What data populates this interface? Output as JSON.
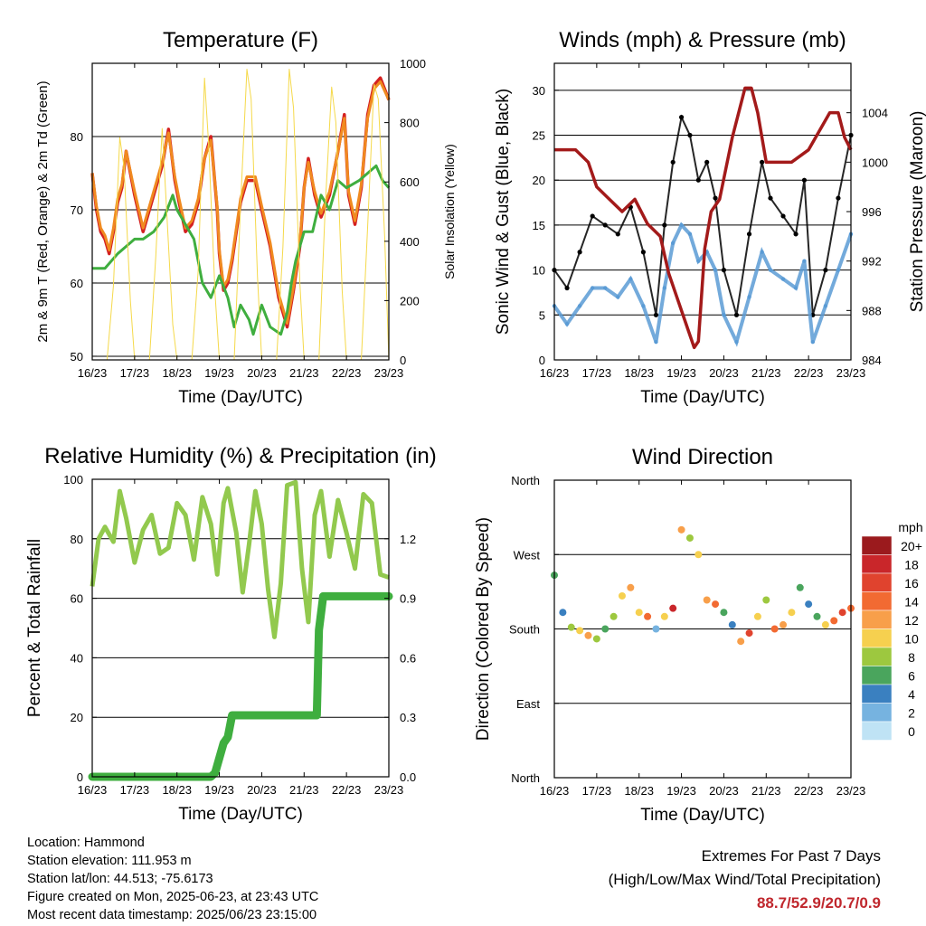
{
  "x_ticks": [
    "16/23",
    "17/23",
    "18/23",
    "19/23",
    "20/23",
    "21/23",
    "22/23",
    "23/23"
  ],
  "xlabel": "Time (Day/UTC)",
  "colors": {
    "temp2m": "#d42020",
    "temp9m": "#f08a20",
    "dewpoint": "#3fae3f",
    "solar": "#f5d94a",
    "sonic_wind": "#5a9bd5",
    "gust": "#000000",
    "pressure": "#a31a1a",
    "rh": "#92c94e",
    "precip": "#3fae3f",
    "extremes": "#c0272d"
  },
  "chart_data": [
    {
      "type": "line",
      "id": "temperature",
      "title": "Temperature (F)",
      "xlabel": "Time (Day/UTC)",
      "ylabel": "2m & 9m T (Red, Orange) & 2m Td (Green)",
      "y2label": "Solar Insolation (Yellow)",
      "x_range": [
        0,
        7
      ],
      "ylim": [
        49.5,
        90
      ],
      "y_ticks": [
        50,
        60,
        70,
        80
      ],
      "y2lim": [
        0,
        1000
      ],
      "y2_ticks": [
        0,
        200,
        400,
        600,
        800,
        1000
      ],
      "grid": true,
      "series": [
        {
          "name": "2m T",
          "axis": "left",
          "color": "#d42020",
          "x": [
            0,
            0.1,
            0.2,
            0.3,
            0.4,
            0.5,
            0.6,
            0.7,
            0.8,
            1.0,
            1.2,
            1.35,
            1.5,
            1.65,
            1.8,
            1.95,
            2.05,
            2.2,
            2.35,
            2.5,
            2.65,
            2.8,
            2.95,
            3.0,
            3.1,
            3.2,
            3.3,
            3.5,
            3.65,
            3.85,
            4.0,
            4.2,
            4.4,
            4.6,
            4.75,
            4.9,
            5.0,
            5.1,
            5.25,
            5.4,
            5.6,
            5.8,
            5.95,
            6.05,
            6.2,
            6.35,
            6.5,
            6.65,
            6.8,
            7.0
          ],
          "y": [
            75,
            70,
            67,
            66,
            64,
            67,
            71,
            73,
            78,
            72,
            67,
            70,
            73,
            76,
            81,
            74,
            71,
            67,
            68,
            71,
            77,
            80,
            70,
            64,
            59,
            60,
            63,
            71,
            74,
            74,
            70,
            65,
            58,
            54,
            59,
            65,
            73,
            77,
            72,
            69,
            72,
            78,
            83,
            72,
            68,
            73,
            83,
            87,
            88,
            85
          ]
        },
        {
          "name": "9m T",
          "axis": "left",
          "color": "#f08a20",
          "x": [
            0,
            0.1,
            0.2,
            0.3,
            0.4,
            0.5,
            0.6,
            0.7,
            0.8,
            1.0,
            1.2,
            1.35,
            1.5,
            1.65,
            1.8,
            1.95,
            2.05,
            2.2,
            2.35,
            2.5,
            2.65,
            2.8,
            2.95,
            3.0,
            3.1,
            3.2,
            3.3,
            3.5,
            3.65,
            3.85,
            4.0,
            4.2,
            4.4,
            4.6,
            4.75,
            4.9,
            5.0,
            5.1,
            5.25,
            5.4,
            5.6,
            5.8,
            5.95,
            6.05,
            6.2,
            6.35,
            6.5,
            6.65,
            6.8,
            7.0
          ],
          "y": [
            75,
            70.5,
            67.5,
            66.5,
            64.5,
            67.5,
            71.5,
            73.5,
            78,
            72.5,
            67.5,
            70.5,
            73.5,
            76.5,
            80.5,
            74.5,
            71.5,
            67.5,
            68.5,
            71.5,
            77,
            79.5,
            70.5,
            64.5,
            59.5,
            60.5,
            63.5,
            71.5,
            74.5,
            74.5,
            70.5,
            65.5,
            58.5,
            54.5,
            59.5,
            65.5,
            73,
            76.5,
            72.5,
            69.5,
            72.5,
            78,
            82.5,
            72.5,
            68.5,
            73.5,
            82.5,
            86.5,
            87.5,
            85
          ]
        },
        {
          "name": "2m Td",
          "axis": "left",
          "color": "#3fae3f",
          "x": [
            0,
            0.3,
            0.6,
            0.8,
            1.0,
            1.2,
            1.45,
            1.7,
            1.9,
            2.0,
            2.2,
            2.4,
            2.6,
            2.8,
            3.0,
            3.2,
            3.35,
            3.5,
            3.7,
            3.8,
            4.0,
            4.2,
            4.45,
            4.6,
            4.7,
            4.8,
            5.0,
            5.2,
            5.4,
            5.6,
            5.8,
            6.0,
            6.3,
            6.5,
            6.7,
            6.85,
            7.0
          ],
          "y": [
            62,
            62,
            64,
            65,
            66,
            66,
            67,
            69,
            72,
            70,
            68,
            66,
            60,
            58,
            61,
            58,
            54,
            57,
            55,
            53,
            57,
            54,
            53,
            56,
            60,
            63,
            67,
            67,
            72,
            70,
            74,
            73,
            74,
            75,
            76,
            74,
            73
          ]
        },
        {
          "name": "Solar Insolation",
          "axis": "right",
          "color": "#f5d94a",
          "x": [
            0,
            0.35,
            0.5,
            0.65,
            0.75,
            0.9,
            1.0,
            1.35,
            1.5,
            1.65,
            1.75,
            1.9,
            2.0,
            2.35,
            2.5,
            2.65,
            2.75,
            2.9,
            3.0,
            3.35,
            3.5,
            3.65,
            3.75,
            3.9,
            4.0,
            4.35,
            4.5,
            4.65,
            4.75,
            4.9,
            5.0,
            5.35,
            5.5,
            5.65,
            5.75,
            5.9,
            6.0,
            6.35,
            6.5,
            6.65,
            6.75,
            6.9,
            7.0
          ],
          "y": [
            0,
            0,
            250,
            750,
            650,
            200,
            0,
            0,
            350,
            780,
            520,
            120,
            0,
            0,
            300,
            950,
            720,
            220,
            0,
            0,
            520,
            980,
            880,
            280,
            0,
            0,
            380,
            980,
            850,
            260,
            0,
            0,
            520,
            920,
            800,
            230,
            0,
            0,
            450,
            930,
            880,
            420,
            0
          ]
        }
      ]
    },
    {
      "type": "scatter",
      "id": "winds",
      "title": "Winds (mph) & Pressure (mb)",
      "xlabel": "Time (Day/UTC)",
      "ylabel": "Sonic Wind & Gust (Blue, Black)",
      "y2label": "Station Pressure (Maroon)",
      "x_range": [
        0,
        7
      ],
      "ylim": [
        0,
        33
      ],
      "y_ticks": [
        0,
        5,
        10,
        15,
        20,
        25,
        30
      ],
      "y2lim": [
        984,
        1008
      ],
      "y2_ticks": [
        984,
        988,
        992,
        996,
        1000,
        1004
      ],
      "grid": true,
      "series": [
        {
          "name": "Gust",
          "axis": "left",
          "color": "#000000",
          "x": [
            0,
            0.3,
            0.6,
            0.9,
            1.2,
            1.5,
            1.8,
            2.1,
            2.4,
            2.6,
            2.8,
            3.0,
            3.2,
            3.4,
            3.6,
            3.8,
            4.0,
            4.3,
            4.6,
            4.9,
            5.1,
            5.4,
            5.7,
            5.9,
            6.1,
            6.4,
            6.7,
            7.0
          ],
          "y": [
            10,
            8,
            12,
            16,
            15,
            14,
            17,
            12,
            5,
            15,
            22,
            27,
            25,
            20,
            22,
            18,
            10,
            5,
            14,
            22,
            18,
            16,
            14,
            20,
            5,
            10,
            18,
            25
          ]
        },
        {
          "name": "Sonic Wind",
          "axis": "left",
          "color": "#5a9bd5",
          "x": [
            0,
            0.3,
            0.6,
            0.9,
            1.2,
            1.5,
            1.8,
            2.1,
            2.4,
            2.6,
            2.8,
            3.0,
            3.2,
            3.4,
            3.6,
            3.8,
            4.0,
            4.3,
            4.6,
            4.9,
            5.1,
            5.4,
            5.7,
            5.9,
            6.1,
            6.4,
            6.7,
            7.0
          ],
          "y": [
            6,
            4,
            6,
            8,
            8,
            7,
            9,
            6,
            2,
            8,
            13,
            15,
            14,
            11,
            12,
            10,
            5,
            2,
            7,
            12,
            10,
            9,
            8,
            11,
            2,
            6,
            10,
            14
          ]
        },
        {
          "name": "Station Pressure",
          "axis": "right",
          "color": "#a31a1a",
          "x": [
            0,
            0.5,
            0.8,
            1.0,
            1.3,
            1.6,
            1.9,
            2.2,
            2.5,
            2.7,
            2.9,
            3.1,
            3.3,
            3.4,
            3.55,
            3.7,
            3.9,
            4.2,
            4.5,
            4.65,
            4.8,
            5.0,
            5.3,
            5.6,
            6.0,
            6.5,
            6.7,
            6.85,
            7.0
          ],
          "y": [
            1001,
            1001,
            1000,
            998,
            997,
            996,
            997,
            995,
            994,
            991,
            989,
            987,
            985,
            985.5,
            993,
            996,
            997,
            1002,
            1006,
            1006,
            1004,
            1000,
            1000,
            1000,
            1001,
            1004,
            1004,
            1002,
            1001
          ]
        }
      ]
    },
    {
      "type": "line",
      "id": "rh_precip",
      "title": "Relative Humidity (%) & Precipitation (in)",
      "xlabel": "Time (Day/UTC)",
      "ylabel": "Percent & Total Rainfall",
      "x_range": [
        0,
        7
      ],
      "ylim": [
        0,
        100
      ],
      "y_ticks": [
        0,
        20,
        40,
        60,
        80,
        100
      ],
      "y2lim": [
        0,
        1.5
      ],
      "y2_ticks": [
        0.0,
        0.3,
        0.6,
        0.9,
        1.2
      ],
      "grid": true,
      "series": [
        {
          "name": "Relative Humidity",
          "axis": "left",
          "color": "#92c94e",
          "x": [
            0,
            0.15,
            0.3,
            0.5,
            0.65,
            0.8,
            1.0,
            1.2,
            1.4,
            1.6,
            1.8,
            2.0,
            2.2,
            2.4,
            2.6,
            2.8,
            2.95,
            3.1,
            3.2,
            3.4,
            3.55,
            3.7,
            3.85,
            4.0,
            4.15,
            4.3,
            4.45,
            4.6,
            4.8,
            4.95,
            5.1,
            5.25,
            5.4,
            5.6,
            5.8,
            6.0,
            6.2,
            6.4,
            6.6,
            6.8,
            7.0
          ],
          "y": [
            64,
            80,
            84,
            79,
            96,
            87,
            72,
            83,
            88,
            75,
            77,
            92,
            88,
            73,
            94,
            85,
            68,
            92,
            97,
            82,
            62,
            78,
            96,
            85,
            63,
            47,
            65,
            98,
            99,
            70,
            52,
            88,
            96,
            74,
            93,
            82,
            70,
            95,
            92,
            68,
            67
          ]
        },
        {
          "name": "Total Precipitation",
          "axis": "right",
          "color": "#3fae3f",
          "x": [
            0,
            2.8,
            2.9,
            3.1,
            3.2,
            3.3,
            5.3,
            5.35,
            5.45,
            7.0
          ],
          "y": [
            0.0,
            0.0,
            0.02,
            0.17,
            0.2,
            0.31,
            0.31,
            0.74,
            0.91,
            0.91
          ]
        }
      ]
    },
    {
      "type": "scatter",
      "id": "wind_direction",
      "title": "Wind Direction",
      "xlabel": "Time (Day/UTC)",
      "ylabel": "Direction (Colored By Speed)",
      "x_range": [
        0,
        7
      ],
      "y_ticks": [
        "North",
        "East",
        "South",
        "West",
        "North"
      ],
      "ylim": [
        0,
        360
      ],
      "grid": true,
      "colorbar": {
        "title": "mph",
        "labels": [
          "20+",
          "18",
          "16",
          "14",
          "12",
          "10",
          "8",
          "6",
          "4",
          "2",
          "0"
        ],
        "colors": [
          "#9b1a1d",
          "#c9262a",
          "#e0432e",
          "#f26a32",
          "#f89f4a",
          "#f6d04f",
          "#9dc83f",
          "#4aa55d",
          "#3a80c0",
          "#76b3e0",
          "#bfe3f5"
        ]
      },
      "series": [
        {
          "name": "Direction",
          "x": [
            0,
            0.2,
            0.4,
            0.6,
            0.8,
            1.0,
            1.2,
            1.4,
            1.6,
            1.8,
            2.0,
            2.2,
            2.4,
            2.6,
            2.8,
            3.0,
            3.2,
            3.4,
            3.6,
            3.8,
            4.0,
            4.2,
            4.4,
            4.6,
            4.8,
            5.0,
            5.2,
            5.4,
            5.6,
            5.8,
            6.0,
            6.2,
            6.4,
            6.6,
            6.8,
            7.0
          ],
          "y": [
            245,
            200,
            182,
            178,
            172,
            168,
            180,
            195,
            220,
            230,
            200,
            195,
            180,
            195,
            205,
            300,
            290,
            270,
            215,
            210,
            200,
            185,
            165,
            175,
            195,
            215,
            180,
            185,
            200,
            230,
            210,
            195,
            185,
            190,
            200,
            205
          ],
          "speed": [
            6,
            4,
            8,
            10,
            12,
            8,
            6,
            8,
            10,
            12,
            10,
            14,
            2,
            10,
            18,
            12,
            8,
            10,
            12,
            14,
            6,
            4,
            12,
            16,
            10,
            8,
            14,
            12,
            10,
            6,
            4,
            6,
            10,
            14,
            16,
            14
          ]
        }
      ]
    }
  ],
  "info": {
    "location": "Location: Hammond",
    "elevation": "Station elevation: 111.953 m",
    "latlon": "Station lat/lon: 44.513; -75.6173",
    "created": "Figure created on Mon, 2025-06-23, at 23:43 UTC",
    "recent": "Most recent data timestamp: 2025/06/23 23:15:00"
  },
  "extremes": {
    "title": "Extremes For Past 7 Days",
    "subtitle": "(High/Low/Max Wind/Total Precipitation)",
    "values": "88.7/52.9/20.7/0.9"
  }
}
